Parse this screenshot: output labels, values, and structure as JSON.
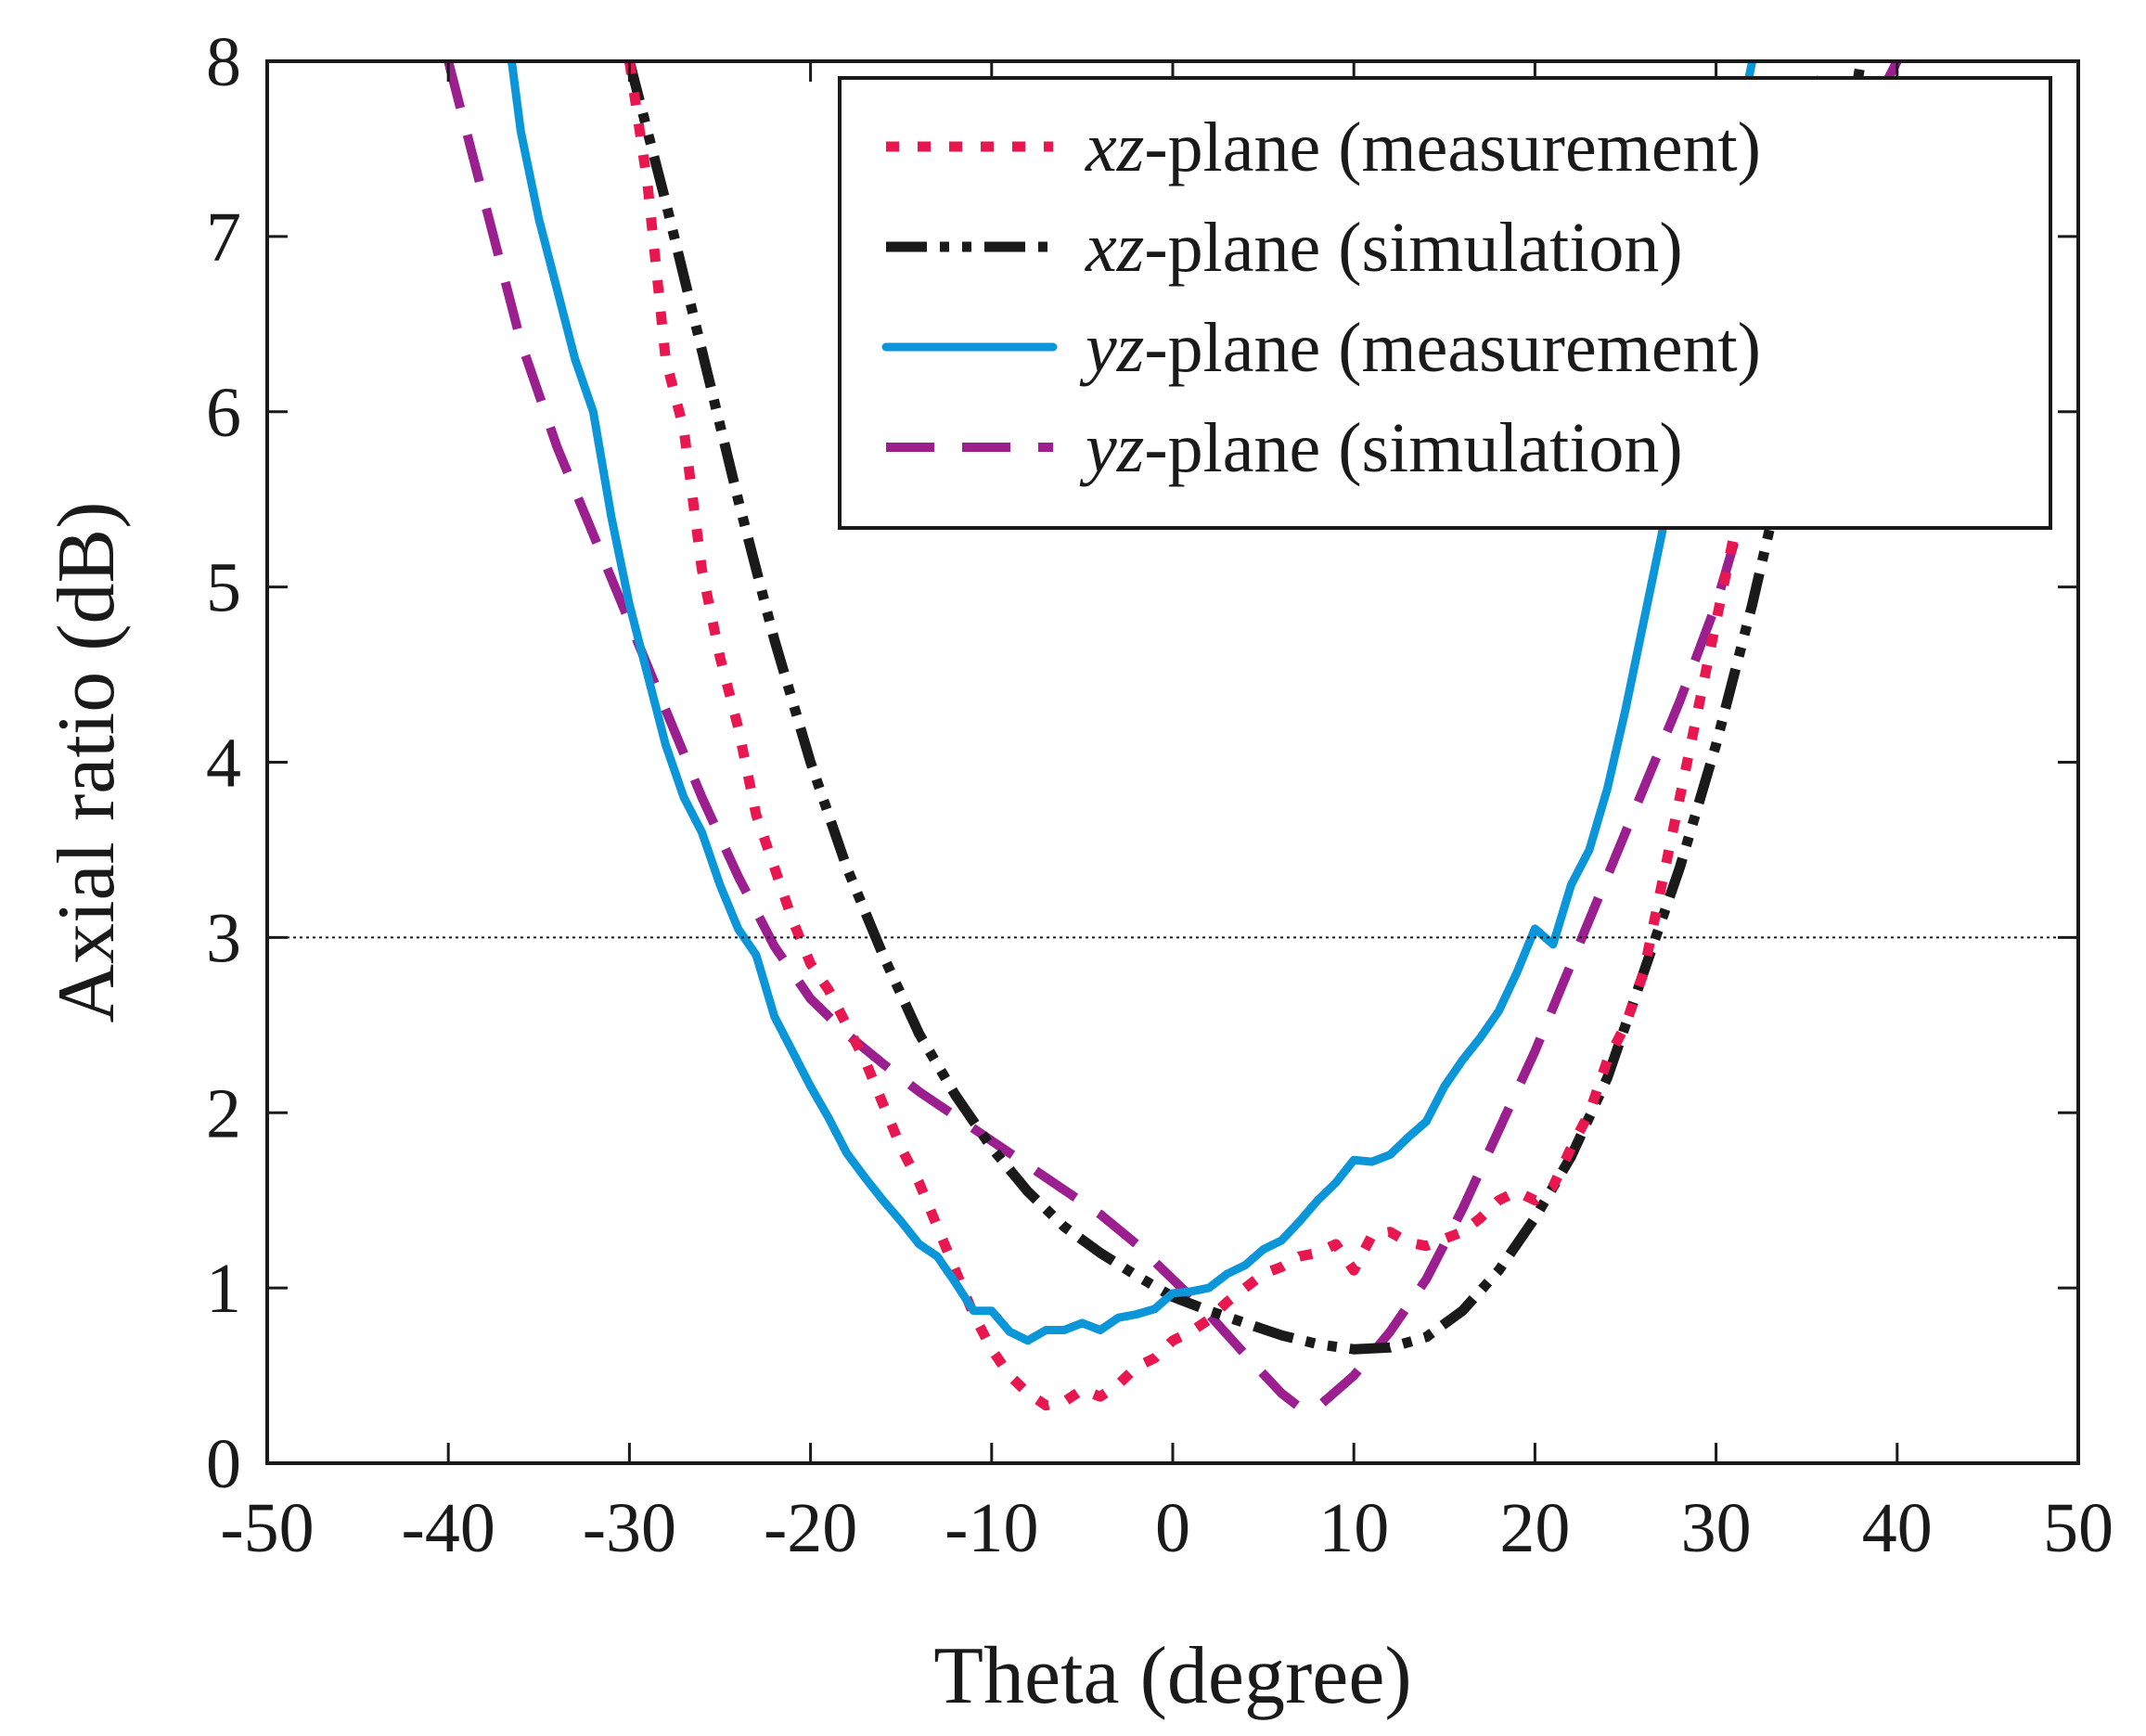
{
  "chart_data": {
    "type": "line",
    "xlabel": "Theta (degree)",
    "ylabel": "Axial ratio (dB)",
    "xlim": [
      -50,
      50
    ],
    "ylim": [
      0,
      8
    ],
    "xticks": [
      "-50",
      "-40",
      "-30",
      "-20",
      "-10",
      "0",
      "10",
      "20",
      "30",
      "40",
      "50"
    ],
    "yticks": [
      "0",
      "1",
      "2",
      "3",
      "4",
      "5",
      "6",
      "7",
      "8"
    ],
    "grid": false,
    "legend_position": "top-right",
    "reference_line": {
      "y": 3
    },
    "series": [
      {
        "plane": "xz",
        "name_suffix": "-plane (measurement)",
        "style": "dotted",
        "color": "#e8174f",
        "points": [
          [
            -30,
            8
          ],
          [
            -29,
            7.3
          ],
          [
            -28,
            6.3
          ],
          [
            -27,
            5.9
          ],
          [
            -26,
            5.1
          ],
          [
            -25,
            4.6
          ],
          [
            -24,
            4.2
          ],
          [
            -23,
            3.7
          ],
          [
            -22,
            3.4
          ],
          [
            -21,
            3.1
          ],
          [
            -20,
            2.85
          ],
          [
            -19,
            2.7
          ],
          [
            -18,
            2.5
          ],
          [
            -17,
            2.3
          ],
          [
            -16,
            2.05
          ],
          [
            -15,
            1.8
          ],
          [
            -14,
            1.6
          ],
          [
            -13,
            1.35
          ],
          [
            -12,
            1.1
          ],
          [
            -11,
            0.85
          ],
          [
            -10,
            0.65
          ],
          [
            -9,
            0.5
          ],
          [
            -8,
            0.4
          ],
          [
            -7,
            0.33
          ],
          [
            -6,
            0.35
          ],
          [
            -5,
            0.42
          ],
          [
            -4,
            0.38
          ],
          [
            -3,
            0.45
          ],
          [
            -2,
            0.55
          ],
          [
            -1,
            0.6
          ],
          [
            0,
            0.7
          ],
          [
            1,
            0.75
          ],
          [
            2,
            0.82
          ],
          [
            3,
            0.92
          ],
          [
            4,
            1.0
          ],
          [
            5,
            1.08
          ],
          [
            6,
            1.12
          ],
          [
            7,
            1.18
          ],
          [
            8,
            1.2
          ],
          [
            9,
            1.25
          ],
          [
            10,
            1.1
          ],
          [
            11,
            1.3
          ],
          [
            12,
            1.32
          ],
          [
            13,
            1.26
          ],
          [
            14,
            1.24
          ],
          [
            15,
            1.28
          ],
          [
            16,
            1.32
          ],
          [
            17,
            1.4
          ],
          [
            18,
            1.5
          ],
          [
            19,
            1.55
          ],
          [
            20,
            1.5
          ],
          [
            21,
            1.58
          ],
          [
            22,
            1.8
          ],
          [
            23,
            2.0
          ],
          [
            24,
            2.3
          ],
          [
            25,
            2.5
          ],
          [
            26,
            2.8
          ],
          [
            27,
            3.3
          ],
          [
            28,
            3.8
          ],
          [
            29,
            4.3
          ],
          [
            30,
            4.8
          ],
          [
            31,
            5.3
          ],
          [
            32,
            5.8
          ],
          [
            33,
            6.3
          ],
          [
            34,
            6.9
          ],
          [
            35,
            7.5
          ],
          [
            36,
            8
          ]
        ]
      },
      {
        "plane": "xz",
        "name_suffix": "-plane (simulation)",
        "style": "dash-dot-dot",
        "color": "#1a1a1a",
        "points": [
          [
            -30,
            8
          ],
          [
            -28,
            7.2
          ],
          [
            -26,
            6.35
          ],
          [
            -24,
            5.5
          ],
          [
            -22,
            4.7
          ],
          [
            -20,
            4.0
          ],
          [
            -18,
            3.4
          ],
          [
            -16,
            2.9
          ],
          [
            -14,
            2.45
          ],
          [
            -12,
            2.1
          ],
          [
            -10,
            1.8
          ],
          [
            -8,
            1.55
          ],
          [
            -6,
            1.35
          ],
          [
            -4,
            1.2
          ],
          [
            -2,
            1.07
          ],
          [
            0,
            0.95
          ],
          [
            2,
            0.87
          ],
          [
            4,
            0.8
          ],
          [
            6,
            0.73
          ],
          [
            8,
            0.68
          ],
          [
            10,
            0.65
          ],
          [
            12,
            0.66
          ],
          [
            14,
            0.72
          ],
          [
            16,
            0.87
          ],
          [
            18,
            1.1
          ],
          [
            20,
            1.4
          ],
          [
            22,
            1.75
          ],
          [
            24,
            2.2
          ],
          [
            26,
            2.8
          ],
          [
            28,
            3.4
          ],
          [
            30,
            4.1
          ],
          [
            32,
            4.9
          ],
          [
            34,
            5.8
          ],
          [
            36,
            6.8
          ],
          [
            38,
            8
          ]
        ]
      },
      {
        "plane": "yz",
        "name_suffix": "-plane (measurement)",
        "style": "solid",
        "color": "#0b96da",
        "points": [
          [
            -36.5,
            8
          ],
          [
            -36,
            7.6
          ],
          [
            -35,
            7.1
          ],
          [
            -34,
            6.7
          ],
          [
            -33,
            6.3
          ],
          [
            -32,
            6.0
          ],
          [
            -31,
            5.4
          ],
          [
            -30,
            4.9
          ],
          [
            -29,
            4.5
          ],
          [
            -28,
            4.1
          ],
          [
            -27,
            3.8
          ],
          [
            -26,
            3.6
          ],
          [
            -25,
            3.3
          ],
          [
            -24,
            3.05
          ],
          [
            -23,
            2.9
          ],
          [
            -22,
            2.55
          ],
          [
            -21,
            2.35
          ],
          [
            -20,
            2.15
          ],
          [
            -19,
            1.97
          ],
          [
            -18,
            1.77
          ],
          [
            -17,
            1.63
          ],
          [
            -16,
            1.5
          ],
          [
            -15,
            1.38
          ],
          [
            -14,
            1.25
          ],
          [
            -13,
            1.18
          ],
          [
            -12,
            1.03
          ],
          [
            -11,
            0.87
          ],
          [
            -10,
            0.87
          ],
          [
            -9,
            0.75
          ],
          [
            -8,
            0.7
          ],
          [
            -7,
            0.76
          ],
          [
            -6,
            0.76
          ],
          [
            -5,
            0.8
          ],
          [
            -4,
            0.76
          ],
          [
            -3,
            0.83
          ],
          [
            -2,
            0.85
          ],
          [
            -1,
            0.88
          ],
          [
            0,
            0.97
          ],
          [
            1,
            0.98
          ],
          [
            2,
            1.0
          ],
          [
            3,
            1.08
          ],
          [
            4,
            1.13
          ],
          [
            5,
            1.22
          ],
          [
            6,
            1.27
          ],
          [
            7,
            1.38
          ],
          [
            8,
            1.5
          ],
          [
            9,
            1.6
          ],
          [
            10,
            1.73
          ],
          [
            11,
            1.72
          ],
          [
            12,
            1.76
          ],
          [
            13,
            1.86
          ],
          [
            14,
            1.95
          ],
          [
            15,
            2.15
          ],
          [
            16,
            2.3
          ],
          [
            17,
            2.43
          ],
          [
            18,
            2.58
          ],
          [
            19,
            2.8
          ],
          [
            20,
            3.05
          ],
          [
            21,
            2.96
          ],
          [
            22,
            3.3
          ],
          [
            23,
            3.5
          ],
          [
            24,
            3.85
          ],
          [
            25,
            4.3
          ],
          [
            26,
            4.8
          ],
          [
            27,
            5.3
          ],
          [
            28,
            5.85
          ],
          [
            29,
            6.4
          ],
          [
            30,
            6.95
          ],
          [
            31,
            7.5
          ],
          [
            32,
            8
          ]
        ]
      },
      {
        "plane": "yz",
        "name_suffix": "-plane (simulation)",
        "style": "dashed",
        "color": "#9b1f8f",
        "points": [
          [
            -40,
            8
          ],
          [
            -38,
            7.2
          ],
          [
            -36,
            6.4
          ],
          [
            -34,
            5.8
          ],
          [
            -32,
            5.3
          ],
          [
            -30,
            4.8
          ],
          [
            -28,
            4.3
          ],
          [
            -26,
            3.8
          ],
          [
            -24,
            3.35
          ],
          [
            -22,
            2.95
          ],
          [
            -20,
            2.65
          ],
          [
            -18,
            2.45
          ],
          [
            -16,
            2.28
          ],
          [
            -14,
            2.12
          ],
          [
            -12,
            1.98
          ],
          [
            -10,
            1.84
          ],
          [
            -8,
            1.7
          ],
          [
            -6,
            1.56
          ],
          [
            -4,
            1.42
          ],
          [
            -2,
            1.25
          ],
          [
            0,
            1.05
          ],
          [
            2,
            0.85
          ],
          [
            4,
            0.62
          ],
          [
            6,
            0.4
          ],
          [
            7,
            0.32
          ],
          [
            8,
            0.32
          ],
          [
            10,
            0.5
          ],
          [
            12,
            0.75
          ],
          [
            14,
            1.05
          ],
          [
            16,
            1.45
          ],
          [
            18,
            1.9
          ],
          [
            20,
            2.35
          ],
          [
            22,
            2.85
          ],
          [
            24,
            3.35
          ],
          [
            26,
            3.85
          ],
          [
            28,
            4.35
          ],
          [
            30,
            4.9
          ],
          [
            32,
            5.6
          ],
          [
            34,
            6.4
          ],
          [
            36,
            7.2
          ],
          [
            38,
            7.6
          ],
          [
            40,
            8
          ]
        ]
      }
    ]
  }
}
